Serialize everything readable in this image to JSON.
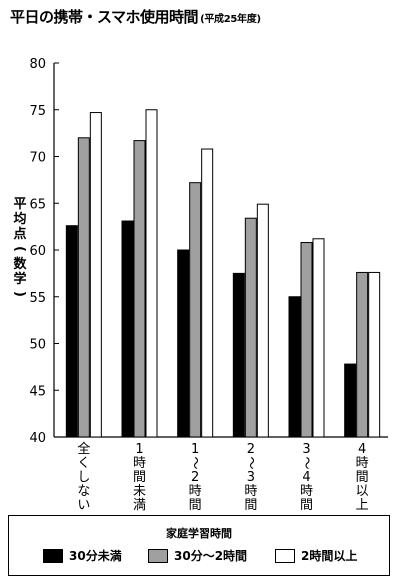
{
  "title": "平日の携帯・スマホ使用時間",
  "subtitle": "(平成25年度)",
  "chart_data": {
    "type": "bar",
    "ylabel": "平均点(数学)",
    "ylim": [
      40,
      80
    ],
    "yticks": [
      40,
      45,
      50,
      55,
      60,
      65,
      70,
      75,
      80
    ],
    "grid": false,
    "categories": [
      "全くしない",
      "1時間未満",
      "1〜2時間",
      "2〜3時間",
      "3〜4時間",
      "4時間以上"
    ],
    "series": [
      {
        "name": "30分未満",
        "color": "#000000",
        "values": [
          62.6,
          63.1,
          60.0,
          57.5,
          55.0,
          47.8
        ]
      },
      {
        "name": "30分〜2時間",
        "color": "#a0a0a0",
        "values": [
          72.0,
          71.7,
          67.2,
          63.4,
          60.8,
          57.6
        ]
      },
      {
        "name": "2時間以上",
        "color": "#ffffff",
        "values": [
          74.7,
          75.0,
          70.8,
          64.9,
          61.2,
          57.6
        ]
      }
    ],
    "legend_title": "家庭学習時間",
    "legend_position": "bottom"
  }
}
